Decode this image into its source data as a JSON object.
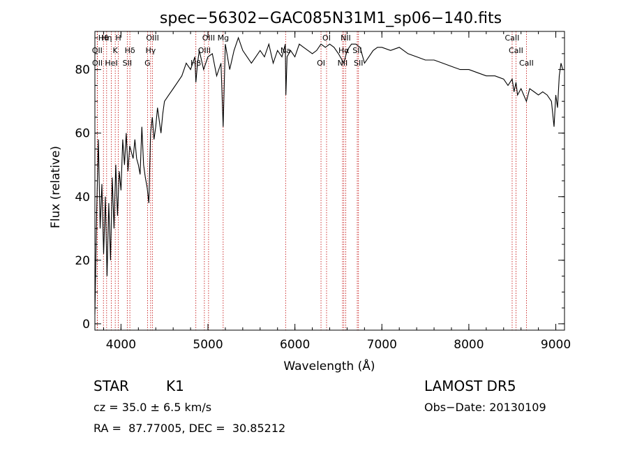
{
  "chart_data": {
    "type": "line",
    "title": "spec−56302−GAC085N31M1_sp06−140.fits",
    "xlabel": "Wavelength (Å)",
    "ylabel": "Flux (relative)",
    "xlim": [
      3700,
      9100
    ],
    "ylim": [
      -2,
      92
    ],
    "xticks": [
      4000,
      5000,
      6000,
      7000,
      8000,
      9000
    ],
    "yticks": [
      0,
      20,
      40,
      60,
      80
    ],
    "grid": false,
    "series": [
      {
        "x": [
          3700,
          3720,
          3740,
          3760,
          3780,
          3800,
          3820,
          3840,
          3860,
          3880,
          3900,
          3920,
          3940,
          3960,
          3980,
          4000,
          4020,
          4040,
          4060,
          4080,
          4100,
          4120,
          4140,
          4160,
          4180,
          4200,
          4220,
          4240,
          4260,
          4280,
          4300,
          4320,
          4340,
          4360,
          4380,
          4400,
          4420,
          4440,
          4460,
          4480,
          4500,
          4550,
          4600,
          4650,
          4700,
          4750,
          4800,
          4850,
          4861,
          4880,
          4900,
          4950,
          5000,
          5050,
          5100,
          5150,
          5175,
          5200,
          5250,
          5300,
          5350,
          5400,
          5450,
          5500,
          5550,
          5600,
          5650,
          5700,
          5750,
          5800,
          5850,
          5890,
          5896,
          5910,
          5950,
          6000,
          6050,
          6100,
          6150,
          6200,
          6250,
          6300,
          6350,
          6400,
          6450,
          6500,
          6563,
          6600,
          6650,
          6700,
          6750,
          6800,
          6850,
          6900,
          6950,
          7000,
          7100,
          7200,
          7300,
          7400,
          7500,
          7600,
          7700,
          7800,
          7900,
          8000,
          8100,
          8200,
          8300,
          8400,
          8450,
          8498,
          8520,
          8542,
          8560,
          8600,
          8662,
          8700,
          8750,
          8800,
          8850,
          8900,
          8950,
          8980,
          9000,
          9020,
          9040,
          9060,
          9080
        ],
        "y": [
          3,
          35,
          58,
          30,
          44,
          22,
          40,
          15,
          38,
          20,
          46,
          30,
          50,
          34,
          48,
          42,
          58,
          50,
          60,
          48,
          56,
          54,
          52,
          58,
          52,
          50,
          47,
          62,
          50,
          46,
          43,
          38,
          60,
          65,
          58,
          62,
          68,
          64,
          60,
          66,
          70,
          72,
          74,
          76,
          78,
          82,
          80,
          84,
          76,
          82,
          86,
          80,
          84,
          85,
          78,
          82,
          62,
          88,
          80,
          86,
          90,
          86,
          84,
          82,
          84,
          86,
          84,
          88,
          82,
          86,
          84,
          88,
          72,
          84,
          86,
          84,
          88,
          87,
          86,
          85,
          86,
          88,
          87,
          88,
          87,
          85,
          82,
          86,
          88,
          88,
          87,
          82,
          84,
          86,
          87,
          87,
          86,
          87,
          85,
          84,
          83,
          83,
          82,
          81,
          80,
          80,
          79,
          78,
          78,
          77,
          75,
          77,
          73,
          76,
          72,
          74,
          70,
          74,
          73,
          72,
          73,
          72,
          70,
          62,
          72,
          68,
          78,
          82,
          80
        ]
      }
    ],
    "line_markers": [
      {
        "name": "Hθ",
        "wl": 3798
      },
      {
        "name": "OII",
        "wl": 3727
      },
      {
        "name": "OII",
        "wl": 3729
      },
      {
        "name": "Hη",
        "wl": 3835
      },
      {
        "name": "K",
        "wl": 3934
      },
      {
        "name": "HeI",
        "wl": 3889
      },
      {
        "name": "H",
        "wl": 3969
      },
      {
        "name": "Hδ",
        "wl": 4102
      },
      {
        "name": "SII",
        "wl": 4072
      },
      {
        "name": "OIII",
        "wl": 4363
      },
      {
        "name": "Hγ",
        "wl": 4341
      },
      {
        "name": "G",
        "wl": 4305
      },
      {
        "name": "OIII",
        "wl": 5007
      },
      {
        "name": "OIII",
        "wl": 4959
      },
      {
        "name": "Hβ",
        "wl": 4861
      },
      {
        "name": "Mg",
        "wl": 5175
      },
      {
        "name": "Na",
        "wl": 5893
      },
      {
        "name": "OI",
        "wl": 6300
      },
      {
        "name": "OI",
        "wl": 6364
      },
      {
        "name": "Hα",
        "wl": 6563
      },
      {
        "name": "NII",
        "wl": 6548
      },
      {
        "name": "NII",
        "wl": 6584
      },
      {
        "name": "SII",
        "wl": 6717
      },
      {
        "name": "SII",
        "wl": 6731
      },
      {
        "name": "CaII",
        "wl": 8498
      },
      {
        "name": "CaII",
        "wl": 8542
      },
      {
        "name": "CaII",
        "wl": 8662
      }
    ],
    "colors": {
      "spectrum": "#000000",
      "markers": "#c00000",
      "axes": "#000000"
    }
  },
  "info": {
    "class": "STAR",
    "subclass": "K1",
    "cz": "cz = 35.0 ± 6.5 km/s",
    "coords": "RA =  87.77005, DEC =  30.85212",
    "survey": "LAMOST DR5",
    "obs_date": "Obs−Date: 20130109"
  }
}
